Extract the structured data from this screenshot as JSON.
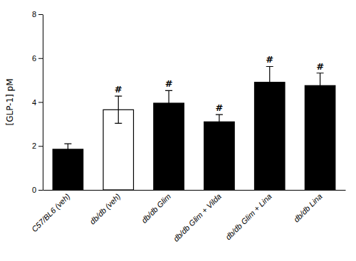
{
  "chart_data": {
    "type": "bar",
    "categories": [
      "C57/BL6 (veh)",
      "db/db (veh)",
      "db/db Glim",
      "db/db Glim + Vilda",
      "db/db Glim + Lina",
      "db/db Lina"
    ],
    "values": [
      1.85,
      3.65,
      3.95,
      3.1,
      4.9,
      4.75
    ],
    "errors": [
      0.25,
      0.62,
      0.57,
      0.33,
      0.72,
      0.57
    ],
    "colors": [
      "#000000",
      "#ffffff",
      "#000000",
      "#000000",
      "#000000",
      "#000000"
    ],
    "annotations": [
      null,
      "#",
      "#",
      "#",
      "#",
      "#"
    ],
    "ylabel": "[GLP-1] pM",
    "ylim": [
      0,
      8
    ],
    "yticks": [
      0,
      2,
      4,
      6,
      8
    ],
    "grid": false
  }
}
